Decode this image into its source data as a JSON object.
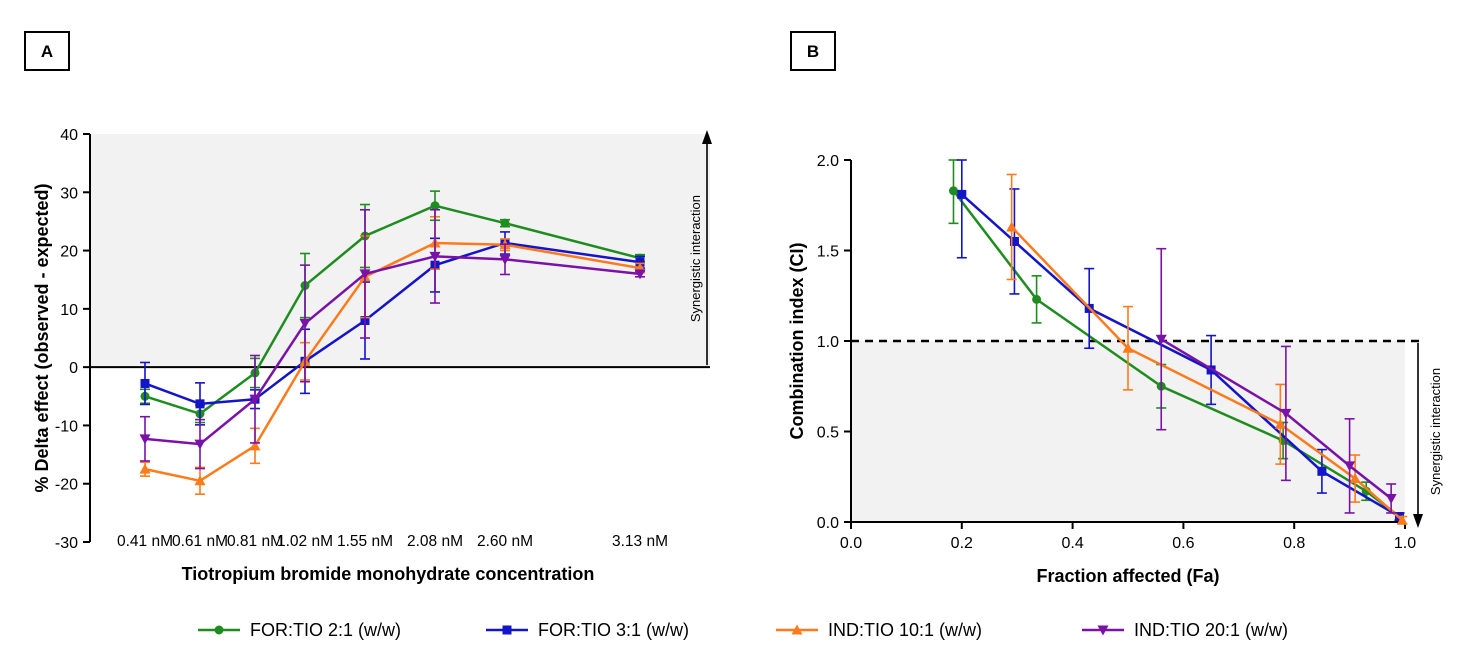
{
  "panels": [
    {
      "id": "A"
    },
    {
      "id": "B"
    }
  ],
  "series_styles": [
    {
      "name": "FOR:TIO 2:1 (w/w)",
      "color": "#1e8c1e",
      "marker": "circle"
    },
    {
      "name": "FOR:TIO 3:1 (w/w)",
      "color": "#1414c8",
      "marker": "square"
    },
    {
      "name": "IND:TIO 10:1 (w/w)",
      "color": "#ff7a1a",
      "marker": "triangle-up"
    },
    {
      "name": "IND:TIO 20:1 (w/w)",
      "color": "#7a12a8",
      "marker": "triangle-down"
    }
  ],
  "chart_data": [
    {
      "panel": "A",
      "type": "line",
      "title": "",
      "xlabel": "Tiotropium bromide monohydrate concentration",
      "ylabel": "% Delta effect (observed - expected)",
      "categories": [
        "0.41 nM",
        "0.61 nM",
        "0.81 nM",
        "1.02 nM",
        "1.55 nM",
        "2.08 nM",
        "2.60 nM",
        "3.13 nM"
      ],
      "ylim": [
        -30,
        40
      ],
      "yticks": [
        -30,
        -20,
        -10,
        0,
        10,
        20,
        30,
        40
      ],
      "annotation": "Synergistic interaction",
      "series": [
        {
          "name": "FOR:TIO 2:1 (w/w)",
          "values": [
            -5,
            -8,
            -1,
            14,
            22.5,
            27.7,
            24.7,
            18.7
          ],
          "errors": [
            1.2,
            1.5,
            2.5,
            5.5,
            5.4,
            2.5,
            0.6,
            0.6
          ]
        },
        {
          "name": "FOR:TIO 3:1 (w/w)",
          "values": [
            -2.8,
            -6.3,
            -5.5,
            1,
            8,
            17.5,
            21.3,
            18
          ],
          "errors": [
            3.6,
            3.6,
            1.6,
            5.5,
            6.6,
            4.6,
            1.9,
            1
          ]
        },
        {
          "name": "IND:TIO 10:1 (w/w)",
          "values": [
            -17.5,
            -19.5,
            -13.5,
            1,
            15.5,
            21.3,
            21,
            17
          ],
          "errors": [
            1.2,
            2.3,
            3,
            3.2,
            7,
            4.5,
            1,
            0.8
          ]
        },
        {
          "name": "IND:TIO 20:1 (w/w)",
          "values": [
            -12.3,
            -13.2,
            -5.5,
            7.5,
            16,
            19,
            18.5,
            16
          ],
          "errors": [
            3.8,
            4.2,
            7.5,
            10,
            11,
            8,
            2.6,
            0.5
          ]
        }
      ]
    },
    {
      "panel": "B",
      "type": "line",
      "title": "",
      "xlabel": "Fraction affected (Fa)",
      "ylabel": "Combination index (CI)",
      "xlim": [
        0,
        1
      ],
      "ylim": [
        0,
        2
      ],
      "xticks": [
        "0.0",
        "0.2",
        "0.4",
        "0.6",
        "0.8",
        "1.0"
      ],
      "yticks": [
        "0.0",
        "0.5",
        "1.0",
        "1.5",
        "2.0"
      ],
      "reference_line": 1.0,
      "annotation": "Synergistic interaction",
      "series": [
        {
          "name": "FOR:TIO 2:1 (w/w)",
          "x": [
            0.185,
            0.335,
            0.56,
            0.78,
            0.93,
            0.99
          ],
          "y": [
            1.83,
            1.23,
            0.75,
            0.45,
            0.17,
            0.03
          ],
          "errors": [
            0.18,
            0.13,
            0.12,
            0.1,
            0.05,
            0.02
          ]
        },
        {
          "name": "FOR:TIO 3:1 (w/w)",
          "x": [
            0.2,
            0.295,
            0.43,
            0.65,
            0.85,
            0.99
          ],
          "y": [
            1.81,
            1.55,
            1.18,
            0.84,
            0.28,
            0.03
          ],
          "errors": [
            0.35,
            0.29,
            0.22,
            0.19,
            0.12,
            0.02
          ]
        },
        {
          "name": "IND:TIO 10:1 (w/w)",
          "x": [
            0.29,
            0.5,
            0.775,
            0.91,
            0.995
          ],
          "y": [
            1.63,
            0.96,
            0.54,
            0.24,
            0.01
          ],
          "errors": [
            0.29,
            0.23,
            0.22,
            0.13,
            0.02
          ]
        },
        {
          "name": "IND:TIO 20:1 (w/w)",
          "x": [
            0.56,
            0.785,
            0.9,
            0.975
          ],
          "y": [
            1.01,
            0.6,
            0.31,
            0.13
          ],
          "errors": [
            0.5,
            0.37,
            0.26,
            0.08
          ]
        }
      ]
    }
  ]
}
